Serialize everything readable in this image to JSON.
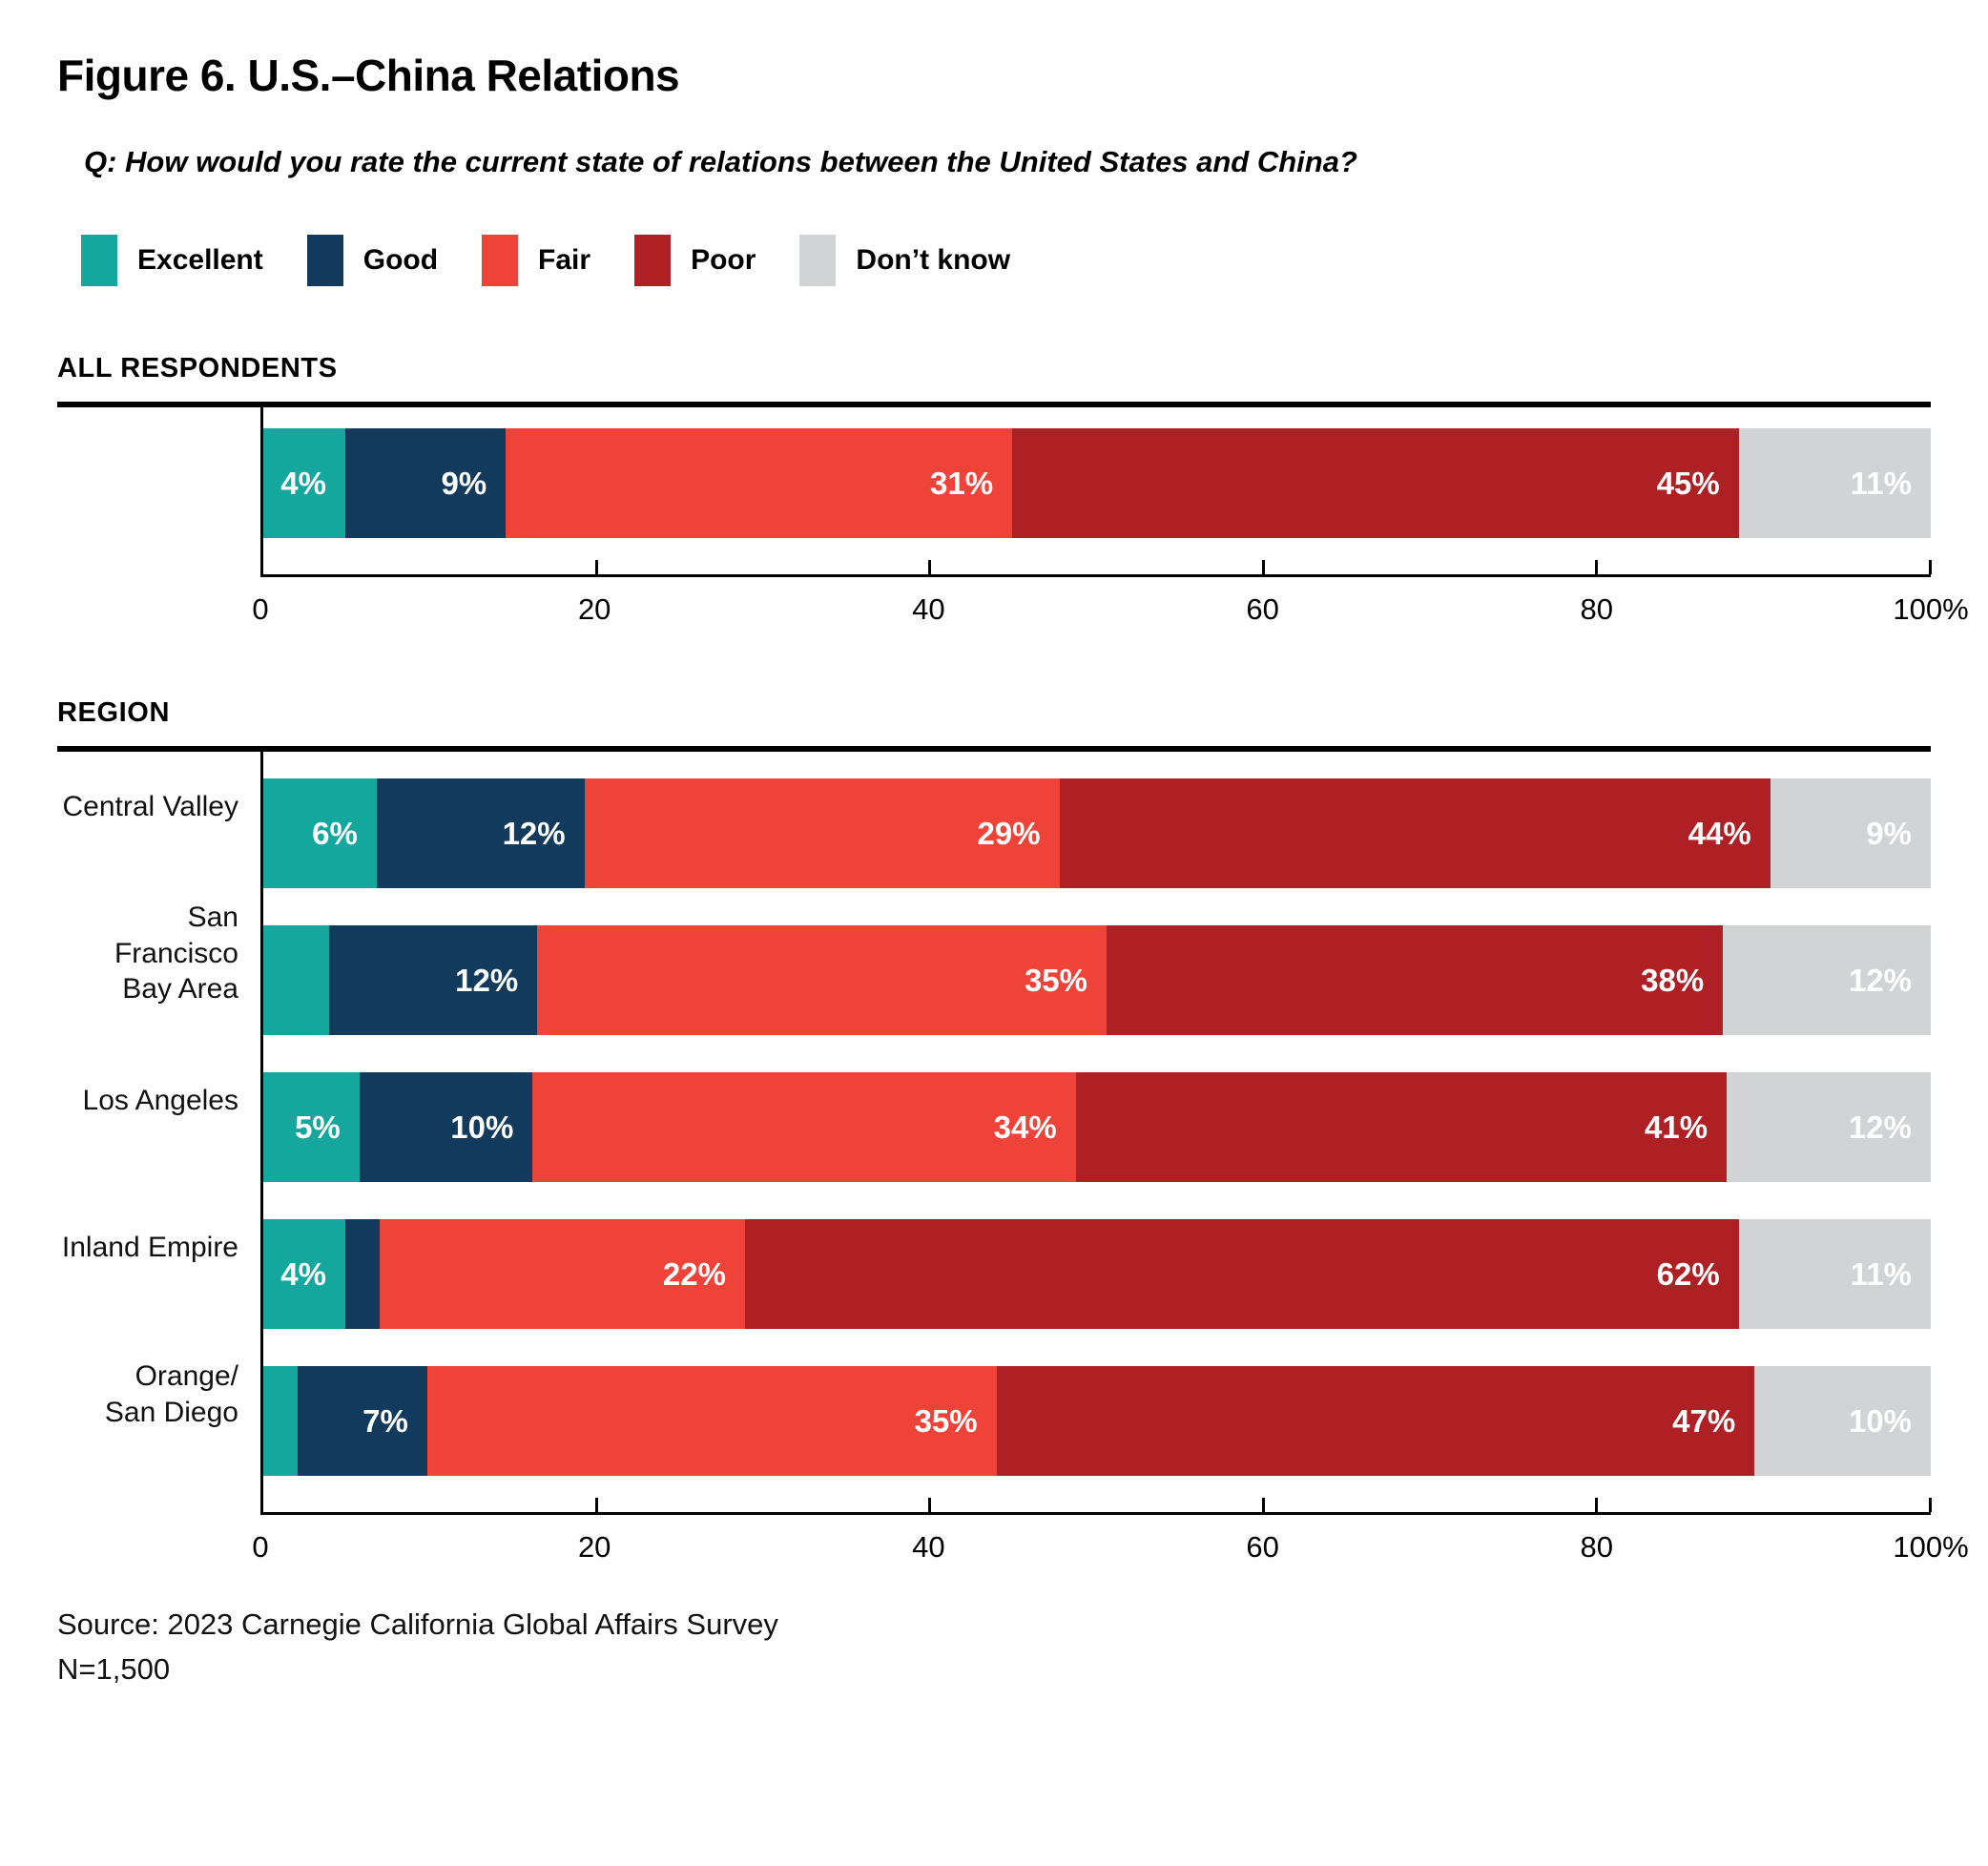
{
  "figure": {
    "title": "Figure 6. U.S.–China Relations",
    "question": "Q: How would you rate the current state of relations between the United States and China?",
    "source_line1": "Source: 2023 Carnegie California Global Affairs Survey",
    "source_line2": "N=1,500"
  },
  "colors": {
    "excellent": "#14A79D",
    "good": "#123A5C",
    "fair": "#EF4238",
    "poor": "#AE2024",
    "dont_know": "#D2D3D4"
  },
  "legend": [
    {
      "label": "Excellent",
      "color_key": "excellent"
    },
    {
      "label": "Good",
      "color_key": "good"
    },
    {
      "label": "Fair",
      "color_key": "fair"
    },
    {
      "label": "Poor",
      "color_key": "poor"
    },
    {
      "label": "Don’t know",
      "color_key": "dont_know"
    }
  ],
  "chart_data": {
    "type": "bar",
    "orientation": "horizontal",
    "stacked": true,
    "unit": "percent",
    "xlim": [
      0,
      100
    ],
    "x_ticks": [
      {
        "value": 0,
        "label": "0"
      },
      {
        "value": 20,
        "label": "20"
      },
      {
        "value": 40,
        "label": "40"
      },
      {
        "value": 60,
        "label": "60"
      },
      {
        "value": 80,
        "label": "80"
      },
      {
        "value": 100,
        "label": "100%"
      }
    ],
    "series_names": [
      "Excellent",
      "Good",
      "Fair",
      "Poor",
      "Don't know"
    ],
    "sections": [
      {
        "heading": "ALL RESPONDENTS",
        "rows": [
          {
            "label": "",
            "label_lines": [],
            "values": [
              4,
              9,
              31,
              45,
              11
            ],
            "value_labels": [
              "4%",
              "9%",
              "31%",
              "45%",
              "11%"
            ]
          }
        ]
      },
      {
        "heading": "REGION",
        "rows": [
          {
            "label": "Central Valley",
            "label_lines": [
              "Central Valley"
            ],
            "values": [
              6,
              12,
              29,
              44,
              9
            ],
            "value_labels": [
              "6%",
              "12%",
              "29%",
              "44%",
              "9%"
            ]
          },
          {
            "label": "San Francisco Bay Area",
            "label_lines": [
              "San Francisco",
              "Bay Area"
            ],
            "values": [
              3,
              12,
              35,
              38,
              12
            ],
            "value_labels": [
              "",
              "12%",
              "35%",
              "38%",
              "12%"
            ]
          },
          {
            "label": "Los Angeles",
            "label_lines": [
              "Los Angeles"
            ],
            "values": [
              5,
              10,
              34,
              41,
              12
            ],
            "value_labels": [
              "5%",
              "10%",
              "34%",
              "41%",
              "12%"
            ]
          },
          {
            "label": "Inland Empire",
            "label_lines": [
              "Inland Empire"
            ],
            "values": [
              4,
              1,
              22,
              62,
              11
            ],
            "value_labels": [
              "4%",
              "",
              "22%",
              "62%",
              "11%"
            ]
          },
          {
            "label": "Orange/San Diego",
            "label_lines": [
              "Orange/",
              "San Diego"
            ],
            "values": [
              1,
              7,
              35,
              47,
              10
            ],
            "value_labels": [
              "",
              "7%",
              "35%",
              "47%",
              "10%"
            ]
          }
        ]
      }
    ]
  }
}
